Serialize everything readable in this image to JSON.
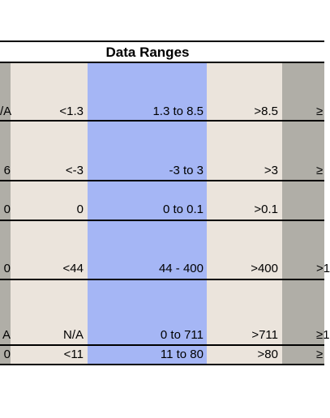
{
  "title": "Data Ranges",
  "rows": [
    [
      "/A",
      "<1.3",
      "1.3 to 8.5",
      ">8.5",
      "≥"
    ],
    [
      "6",
      "<-3",
      "-3 to 3",
      ">3",
      "≥"
    ],
    [
      "0",
      "0",
      "0 to 0.1",
      ">0.1",
      ""
    ],
    [
      "0",
      "<44",
      "44 - 400",
      ">400",
      ">1"
    ],
    [
      "A",
      "N/A",
      "0 to 711",
      ">711",
      "≥1"
    ],
    [
      "0",
      "<11",
      "11  to 80",
      ">80",
      "≥"
    ]
  ],
  "colors": {
    "edge_column": "#b0aea7",
    "side_column": "#ebe4dc",
    "center_column": "#a5b6f5",
    "rule": "#000000"
  }
}
